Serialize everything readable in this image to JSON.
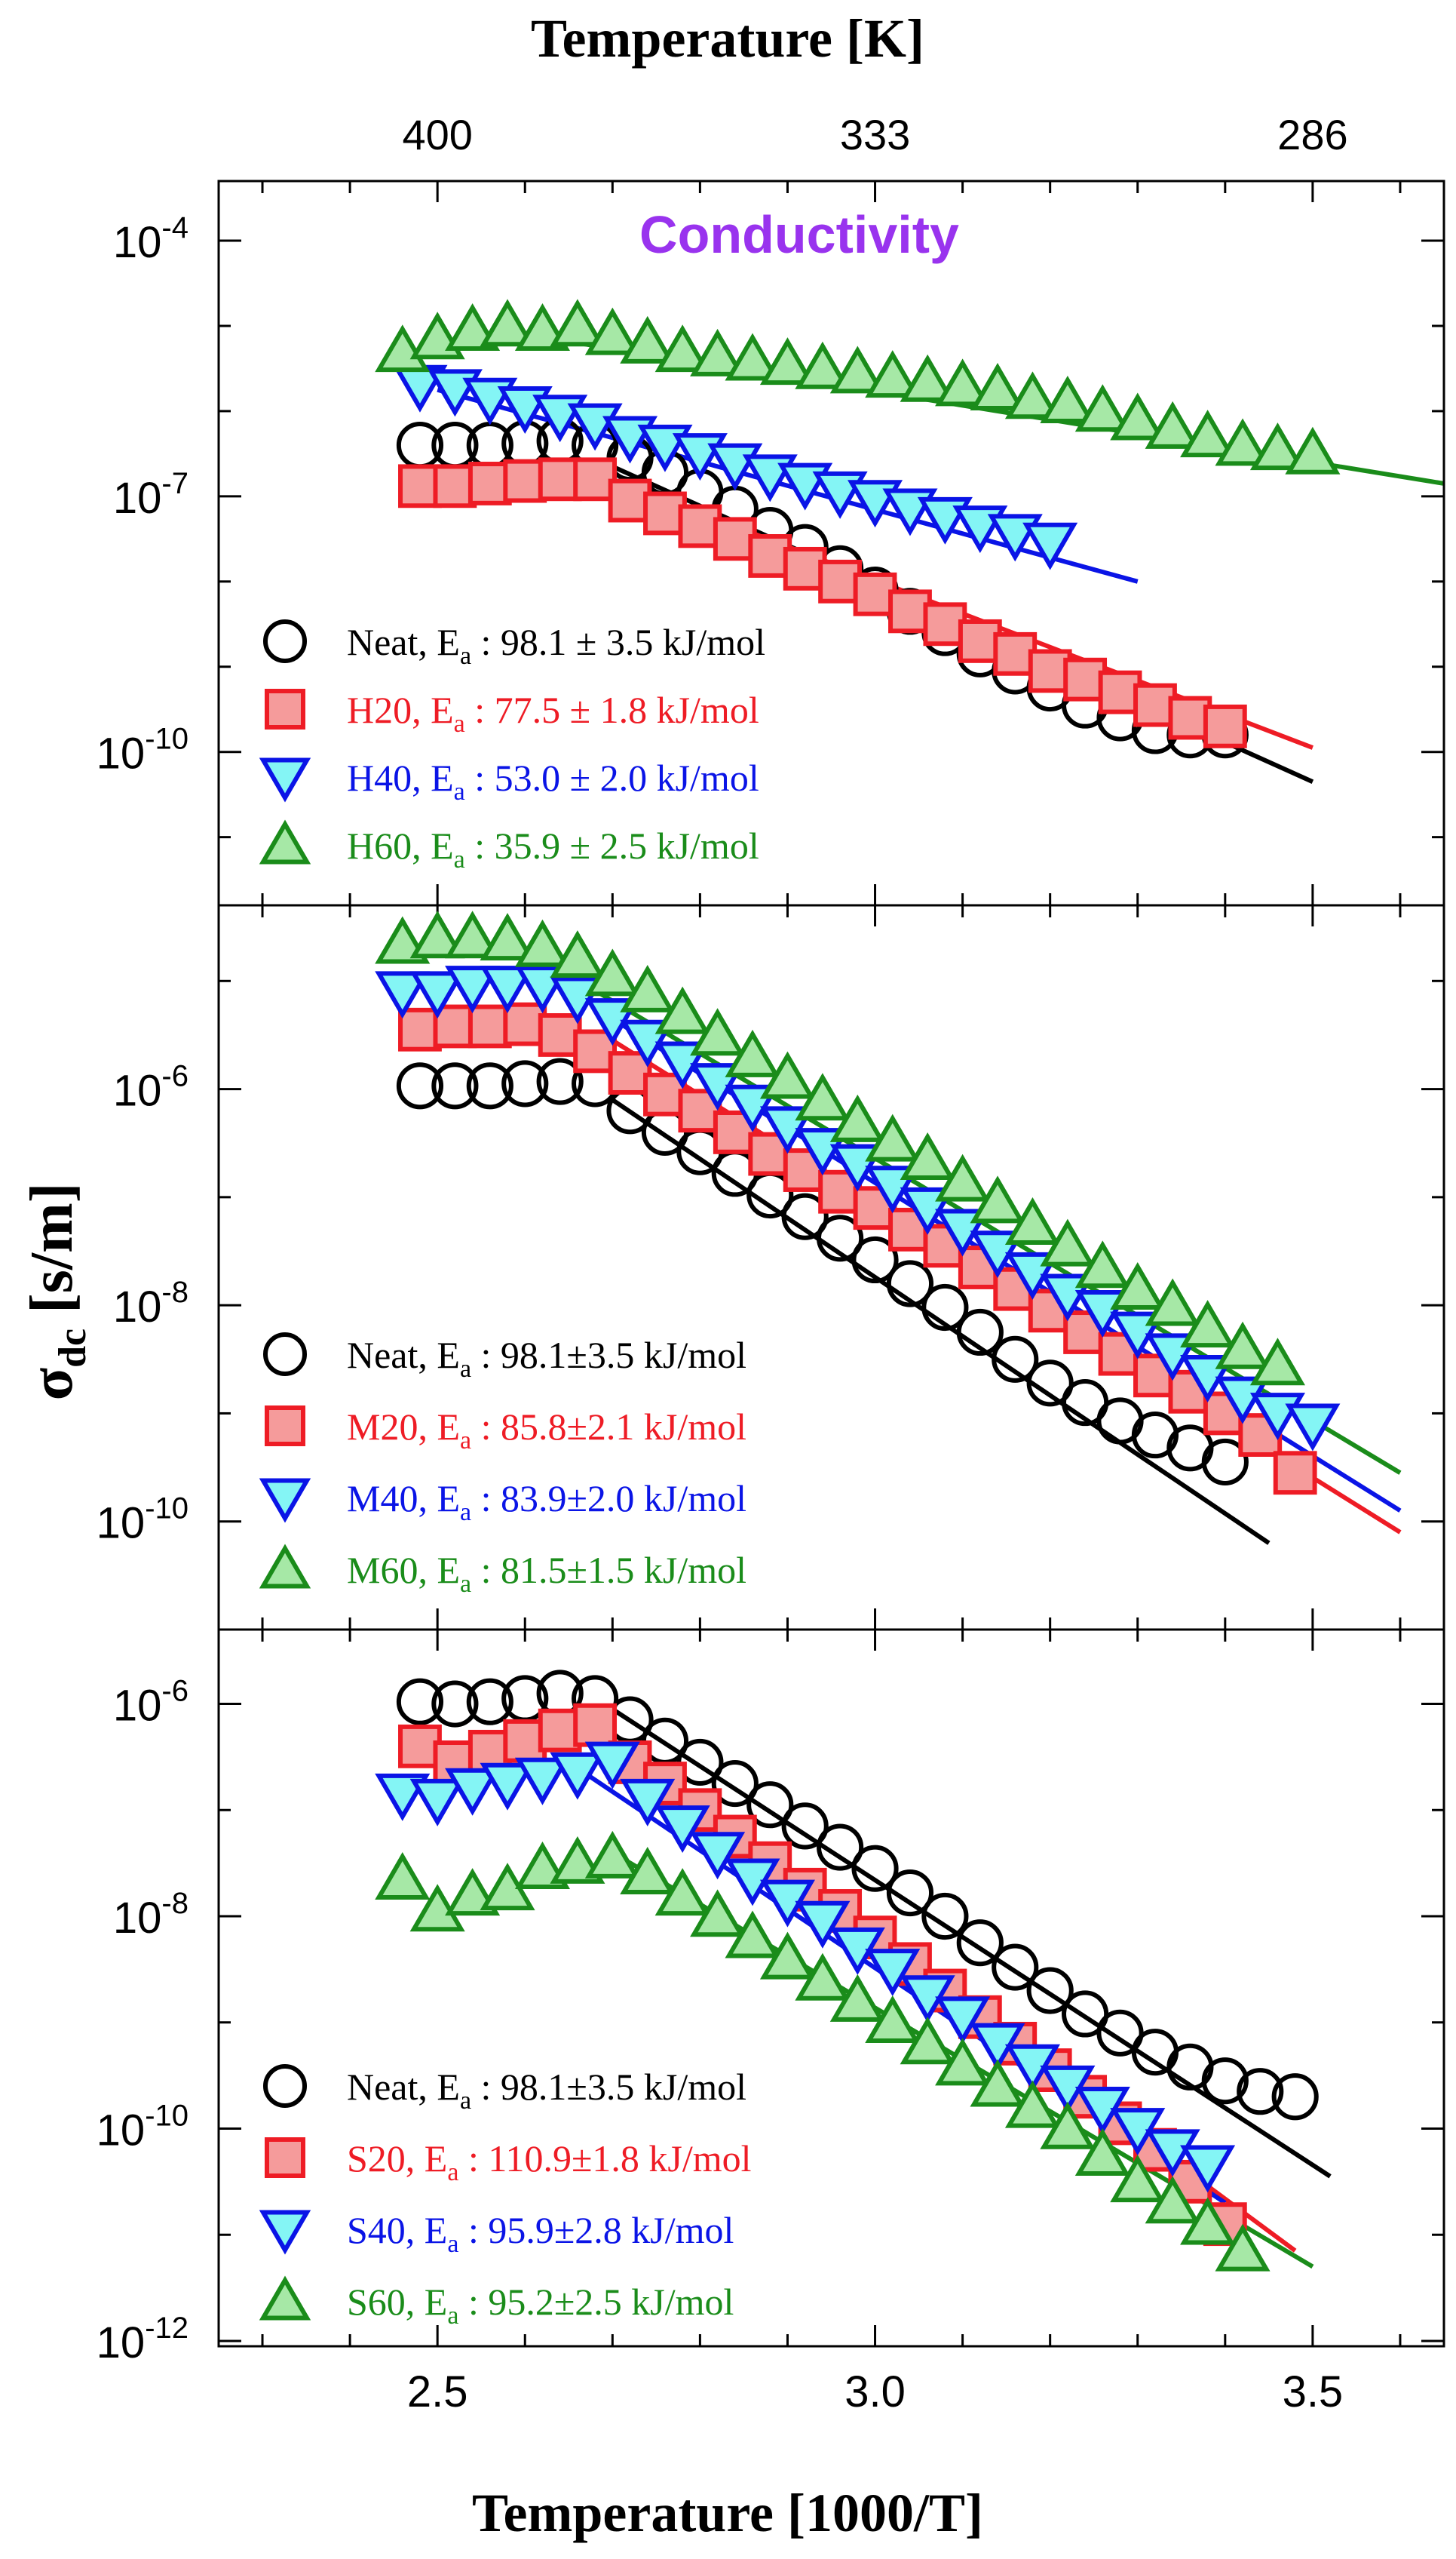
{
  "chart_data": {
    "type": "scatter",
    "title": "Conductivity",
    "top_axis_label": "Temperature [K]",
    "top_tick_labels": [
      "400",
      "333",
      "286"
    ],
    "xlabel": "Temperature [1000/T]",
    "ylabel_main": "σ",
    "ylabel_sub": "dc",
    "ylabel_unit": " [s/m]",
    "x_ticks": [
      2.5,
      3.0,
      3.5
    ],
    "x_tick_labels": [
      "2.5",
      "3.0",
      "3.5"
    ],
    "xlim": [
      2.25,
      3.65
    ],
    "panels": [
      {
        "name": "H",
        "ylim_log10": [
          -11.8,
          -3.3
        ],
        "major_ticks_log10": [
          -4,
          -7,
          -10
        ],
        "tick_labels": [
          {
            "base": "10",
            "exp": "-4"
          },
          {
            "base": "10",
            "exp": "-7"
          },
          {
            "base": "10",
            "exp": "-10"
          }
        ],
        "series": [
          {
            "name": "Neat",
            "marker": "circle",
            "color": "#000000",
            "fill": "none",
            "legend": "Neat, E",
            "legend_sub": "a",
            "legend_rest": " : 98.1 ± 3.5 kJ/mol",
            "x": [
              2.48,
              2.52,
              2.56,
              2.6,
              2.64,
              2.68,
              2.72,
              2.76,
              2.8,
              2.84,
              2.88,
              2.92,
              2.96,
              3.0,
              3.04,
              3.08,
              3.12,
              3.16,
              3.2,
              3.24,
              3.28,
              3.32,
              3.36,
              3.4
            ],
            "y": [
              -6.4,
              -6.4,
              -6.4,
              -6.38,
              -6.35,
              -6.4,
              -6.55,
              -6.72,
              -6.95,
              -7.15,
              -7.4,
              -7.6,
              -7.85,
              -8.1,
              -8.35,
              -8.6,
              -8.85,
              -9.05,
              -9.25,
              -9.45,
              -9.6,
              -9.75,
              -9.8,
              -9.8
            ],
            "fit": {
              "x1": 2.7,
              "y1": -6.65,
              "x2": 3.5,
              "y2": -10.35
            }
          },
          {
            "name": "H20",
            "marker": "square",
            "color": "#ee1c25",
            "fill": "#f59b9b",
            "legend": "H20, E",
            "legend_sub": "a",
            "legend_rest": " : 77.5 ± 1.8 kJ/mol",
            "x": [
              2.48,
              2.52,
              2.56,
              2.6,
              2.64,
              2.68,
              2.72,
              2.76,
              2.8,
              2.84,
              2.88,
              2.92,
              2.96,
              3.0,
              3.04,
              3.08,
              3.12,
              3.16,
              3.2,
              3.24,
              3.28,
              3.32,
              3.36,
              3.4
            ],
            "y": [
              -6.88,
              -6.88,
              -6.85,
              -6.82,
              -6.8,
              -6.8,
              -7.05,
              -7.2,
              -7.35,
              -7.5,
              -7.7,
              -7.85,
              -8.0,
              -8.15,
              -8.35,
              -8.5,
              -8.7,
              -8.85,
              -9.05,
              -9.15,
              -9.3,
              -9.45,
              -9.6,
              -9.7
            ],
            "fit": {
              "x1": 2.75,
              "y1": -7.0,
              "x2": 3.5,
              "y2": -9.95
            }
          },
          {
            "name": "H40",
            "marker": "triangle-down",
            "color": "#0a14e6",
            "fill": "#84f5f5",
            "legend": "H40, E",
            "legend_sub": "a",
            "legend_rest": " : 53.0 ± 2.0 kJ/mol",
            "x": [
              2.48,
              2.52,
              2.56,
              2.6,
              2.64,
              2.68,
              2.72,
              2.76,
              2.8,
              2.84,
              2.88,
              2.92,
              2.96,
              3.0,
              3.04,
              3.08,
              3.12,
              3.16,
              3.2
            ],
            "y": [
              -5.7,
              -5.75,
              -5.85,
              -5.95,
              -6.05,
              -6.15,
              -6.3,
              -6.4,
              -6.5,
              -6.62,
              -6.75,
              -6.85,
              -6.95,
              -7.05,
              -7.15,
              -7.25,
              -7.35,
              -7.45,
              -7.55
            ],
            "fit": {
              "x1": 2.5,
              "y1": -5.75,
              "x2": 3.3,
              "y2": -8.0
            }
          },
          {
            "name": "H60",
            "marker": "triangle-up",
            "color": "#1a8c1a",
            "fill": "#a6e8a6",
            "legend": "H60, E",
            "legend_sub": "a",
            "legend_rest": " : 35.9 ± 2.5 kJ/mol",
            "x": [
              2.46,
              2.5,
              2.54,
              2.58,
              2.62,
              2.66,
              2.7,
              2.74,
              2.78,
              2.82,
              2.86,
              2.9,
              2.94,
              2.98,
              3.02,
              3.06,
              3.1,
              3.14,
              3.18,
              3.22,
              3.26,
              3.3,
              3.34,
              3.38,
              3.42,
              3.46,
              3.5
            ],
            "y": [
              -5.3,
              -5.15,
              -5.05,
              -5.0,
              -5.05,
              -5.0,
              -5.1,
              -5.2,
              -5.3,
              -5.35,
              -5.4,
              -5.45,
              -5.5,
              -5.55,
              -5.6,
              -5.65,
              -5.7,
              -5.75,
              -5.85,
              -5.9,
              -6.0,
              -6.1,
              -6.2,
              -6.3,
              -6.4,
              -6.45,
              -6.5
            ],
            "fit": {
              "x1": 2.6,
              "y1": -5.1,
              "x2": 3.65,
              "y2": -6.85
            }
          }
        ]
      },
      {
        "name": "M",
        "ylim_log10": [
          -11.0,
          -4.3
        ],
        "major_ticks_log10": [
          -6,
          -8,
          -10
        ],
        "tick_labels": [
          {
            "base": "10",
            "exp": "-6"
          },
          {
            "base": "10",
            "exp": "-8"
          },
          {
            "base": "10",
            "exp": "-10"
          }
        ],
        "series": [
          {
            "name": "Neat",
            "marker": "circle",
            "color": "#000000",
            "fill": "none",
            "legend": "Neat, E",
            "legend_sub": "a",
            "legend_rest": " : 98.1±3.5 kJ/mol",
            "x": [
              2.48,
              2.52,
              2.56,
              2.6,
              2.64,
              2.68,
              2.72,
              2.76,
              2.8,
              2.84,
              2.88,
              2.92,
              2.96,
              3.0,
              3.04,
              3.08,
              3.12,
              3.16,
              3.2,
              3.24,
              3.28,
              3.32,
              3.36,
              3.4
            ],
            "y": [
              -5.97,
              -5.97,
              -5.97,
              -5.95,
              -5.93,
              -5.95,
              -6.2,
              -6.4,
              -6.58,
              -6.78,
              -6.98,
              -7.18,
              -7.38,
              -7.58,
              -7.8,
              -8.02,
              -8.25,
              -8.5,
              -8.72,
              -8.9,
              -9.07,
              -9.2,
              -9.32,
              -9.45
            ],
            "fit": {
              "x1": 2.7,
              "y1": -6.1,
              "x2": 3.45,
              "y2": -10.2
            }
          },
          {
            "name": "M20",
            "marker": "square",
            "color": "#ee1c25",
            "fill": "#f59b9b",
            "legend": "M20, E",
            "legend_sub": "a",
            "legend_rest": " : 85.8±2.1 kJ/mol",
            "x": [
              2.48,
              2.52,
              2.56,
              2.6,
              2.64,
              2.68,
              2.72,
              2.76,
              2.8,
              2.84,
              2.88,
              2.92,
              2.96,
              3.0,
              3.04,
              3.08,
              3.12,
              3.16,
              3.2,
              3.24,
              3.28,
              3.32,
              3.36,
              3.4,
              3.44,
              3.48
            ],
            "y": [
              -5.45,
              -5.42,
              -5.42,
              -5.4,
              -5.5,
              -5.65,
              -5.85,
              -6.05,
              -6.2,
              -6.4,
              -6.6,
              -6.75,
              -6.95,
              -7.1,
              -7.3,
              -7.45,
              -7.65,
              -7.85,
              -8.05,
              -8.25,
              -8.45,
              -8.65,
              -8.8,
              -9.0,
              -9.2,
              -9.55
            ],
            "fit": {
              "x1": 2.7,
              "y1": -5.55,
              "x2": 3.6,
              "y2": -10.1
            }
          },
          {
            "name": "M40",
            "marker": "triangle-down",
            "color": "#0a14e6",
            "fill": "#84f5f5",
            "legend": "M40, E",
            "legend_sub": "a",
            "legend_rest": " : 83.9±2.0 kJ/mol",
            "x": [
              2.46,
              2.5,
              2.54,
              2.58,
              2.62,
              2.66,
              2.7,
              2.74,
              2.78,
              2.82,
              2.86,
              2.9,
              2.94,
              2.98,
              3.02,
              3.06,
              3.1,
              3.14,
              3.18,
              3.22,
              3.26,
              3.3,
              3.34,
              3.38,
              3.42,
              3.46,
              3.5
            ],
            "y": [
              -5.1,
              -5.1,
              -5.05,
              -5.05,
              -5.05,
              -5.15,
              -5.35,
              -5.55,
              -5.75,
              -5.95,
              -6.15,
              -6.35,
              -6.55,
              -6.7,
              -6.9,
              -7.1,
              -7.3,
              -7.5,
              -7.7,
              -7.9,
              -8.05,
              -8.25,
              -8.45,
              -8.65,
              -8.85,
              -9.0,
              -9.1
            ],
            "fit": {
              "x1": 2.7,
              "y1": -5.35,
              "x2": 3.6,
              "y2": -9.9
            }
          },
          {
            "name": "M60",
            "marker": "triangle-up",
            "color": "#1a8c1a",
            "fill": "#a6e8a6",
            "legend": "M60, E",
            "legend_sub": "a",
            "legend_rest": " : 81.5±1.5 kJ/mol",
            "x": [
              2.46,
              2.5,
              2.54,
              2.58,
              2.62,
              2.66,
              2.7,
              2.74,
              2.78,
              2.82,
              2.86,
              2.9,
              2.94,
              2.98,
              3.02,
              3.06,
              3.1,
              3.14,
              3.18,
              3.22,
              3.26,
              3.3,
              3.34,
              3.38,
              3.42,
              3.46
            ],
            "y": [
              -4.65,
              -4.6,
              -4.6,
              -4.62,
              -4.68,
              -4.78,
              -4.95,
              -5.1,
              -5.3,
              -5.5,
              -5.7,
              -5.9,
              -6.1,
              -6.3,
              -6.48,
              -6.65,
              -6.85,
              -7.05,
              -7.25,
              -7.45,
              -7.65,
              -7.85,
              -8.0,
              -8.2,
              -8.4,
              -8.55
            ],
            "fit": {
              "x1": 2.6,
              "y1": -4.7,
              "x2": 3.6,
              "y2": -9.55
            }
          }
        ]
      },
      {
        "name": "S",
        "ylim_log10": [
          -12.05,
          -5.3
        ],
        "major_ticks_log10": [
          -6,
          -8,
          -10,
          -12
        ],
        "tick_labels": [
          {
            "base": "10",
            "exp": "-6"
          },
          {
            "base": "10",
            "exp": "-8"
          },
          {
            "base": "10",
            "exp": "-10"
          },
          {
            "base": "10",
            "exp": "-12"
          }
        ],
        "series": [
          {
            "name": "Neat",
            "marker": "circle",
            "color": "#000000",
            "fill": "none",
            "legend": "Neat, E",
            "legend_sub": "a",
            "legend_rest": " : 98.1±3.5 kJ/mol",
            "x": [
              2.48,
              2.52,
              2.56,
              2.6,
              2.64,
              2.68,
              2.72,
              2.76,
              2.8,
              2.84,
              2.88,
              2.92,
              2.96,
              3.0,
              3.04,
              3.08,
              3.12,
              3.16,
              3.2,
              3.24,
              3.28,
              3.32,
              3.36,
              3.4,
              3.44,
              3.48
            ],
            "y": [
              -5.98,
              -6.0,
              -5.98,
              -5.95,
              -5.9,
              -5.95,
              -6.15,
              -6.35,
              -6.55,
              -6.75,
              -6.95,
              -7.15,
              -7.35,
              -7.55,
              -7.78,
              -8.0,
              -8.25,
              -8.48,
              -8.7,
              -8.92,
              -9.1,
              -9.28,
              -9.42,
              -9.55,
              -9.65,
              -9.7
            ],
            "fit": {
              "x1": 2.7,
              "y1": -6.05,
              "x2": 3.52,
              "y2": -10.45
            }
          },
          {
            "name": "S20",
            "marker": "square",
            "color": "#ee1c25",
            "fill": "#f59b9b",
            "legend": "S20, E",
            "legend_sub": "a",
            "legend_rest": " : 110.9±1.8 kJ/mol",
            "x": [
              2.48,
              2.52,
              2.56,
              2.6,
              2.64,
              2.68,
              2.72,
              2.76,
              2.8,
              2.84,
              2.88,
              2.92,
              2.96,
              3.0,
              3.04,
              3.08,
              3.12,
              3.16,
              3.2,
              3.24,
              3.28,
              3.32,
              3.36,
              3.4
            ],
            "y": [
              -6.4,
              -6.55,
              -6.45,
              -6.35,
              -6.25,
              -6.2,
              -6.55,
              -6.75,
              -7.0,
              -7.25,
              -7.5,
              -7.75,
              -7.95,
              -8.2,
              -8.45,
              -8.7,
              -8.95,
              -9.2,
              -9.45,
              -9.7,
              -9.95,
              -10.2,
              -10.5,
              -10.9
            ],
            "fit": {
              "x1": 2.75,
              "y1": -6.7,
              "x2": 3.48,
              "y2": -11.15
            }
          },
          {
            "name": "S40",
            "marker": "triangle-down",
            "color": "#0a14e6",
            "fill": "#84f5f5",
            "legend": "S40, E",
            "legend_sub": "a",
            "legend_rest": " : 95.9±2.8 kJ/mol",
            "x": [
              2.46,
              2.5,
              2.54,
              2.58,
              2.62,
              2.66,
              2.7,
              2.74,
              2.78,
              2.82,
              2.86,
              2.9,
              2.94,
              2.98,
              3.02,
              3.06,
              3.1,
              3.14,
              3.18,
              3.22,
              3.26,
              3.3,
              3.34,
              3.38
            ],
            "y": [
              -6.85,
              -6.9,
              -6.8,
              -6.75,
              -6.7,
              -6.65,
              -6.55,
              -6.9,
              -7.15,
              -7.4,
              -7.65,
              -7.85,
              -8.05,
              -8.3,
              -8.5,
              -8.75,
              -8.95,
              -9.2,
              -9.4,
              -9.6,
              -9.8,
              -10.0,
              -10.2,
              -10.35
            ],
            "fit": {
              "x1": 2.65,
              "y1": -6.55,
              "x2": 3.4,
              "y2": -10.7
            }
          },
          {
            "name": "S60",
            "marker": "triangle-up",
            "color": "#1a8c1a",
            "fill": "#a6e8a6",
            "legend": "S60, E",
            "legend_sub": "a",
            "legend_rest": " : 95.2±2.5 kJ/mol",
            "x": [
              2.46,
              2.5,
              2.54,
              2.58,
              2.62,
              2.66,
              2.7,
              2.74,
              2.78,
              2.82,
              2.86,
              2.9,
              2.94,
              2.98,
              3.02,
              3.06,
              3.1,
              3.14,
              3.18,
              3.22,
              3.26,
              3.3,
              3.34,
              3.38,
              3.42
            ],
            "y": [
              -7.65,
              -7.95,
              -7.8,
              -7.75,
              -7.55,
              -7.5,
              -7.45,
              -7.6,
              -7.8,
              -8.0,
              -8.2,
              -8.4,
              -8.6,
              -8.8,
              -9.0,
              -9.2,
              -9.4,
              -9.6,
              -9.8,
              -10.0,
              -10.25,
              -10.5,
              -10.7,
              -10.9,
              -11.15
            ],
            "fit": {
              "x1": 2.7,
              "y1": -7.4,
              "x2": 3.5,
              "y2": -11.3
            }
          }
        ]
      }
    ]
  }
}
